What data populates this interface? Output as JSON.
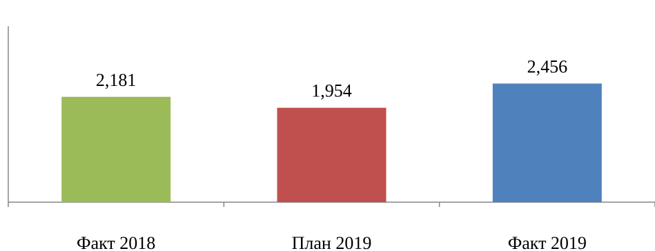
{
  "chart_data": {
    "type": "bar",
    "title": "",
    "categories": [
      "Факт 2018",
      "План 2019",
      "Факт 2019"
    ],
    "values": [
      2181,
      1954,
      2456
    ],
    "data_labels": [
      "2,181",
      "1,954",
      "2,456"
    ],
    "colors": [
      "#9BBB59",
      "#C0504D",
      "#4F81BD"
    ],
    "xlabel": "",
    "ylabel": "",
    "ylim": [
      0,
      3000
    ],
    "grid": false,
    "legend": "none"
  }
}
